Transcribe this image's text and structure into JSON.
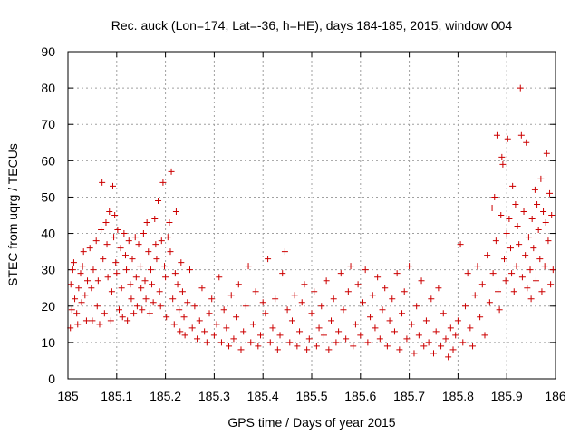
{
  "chart_data": {
    "type": "scatter",
    "title": "Rec. auck (Lon=174, Lat=-36, h=HE), days 184-185, 2015, window 004",
    "xlabel": "GPS time / Days of year 2015",
    "ylabel": "STEC from uqrg / TECUs",
    "xlim": [
      185,
      186
    ],
    "ylim": [
      0,
      90
    ],
    "x_ticks": [
      185,
      185.1,
      185.2,
      185.3,
      185.4,
      185.5,
      185.6,
      185.7,
      185.8,
      185.9,
      186
    ],
    "x_tick_labels": [
      "185",
      "185.1",
      "185.2",
      "185.3",
      "185.4",
      "185.5",
      "185.6",
      "185.7",
      "185.8",
      "185.9",
      "186"
    ],
    "y_ticks": [
      0,
      10,
      20,
      30,
      40,
      50,
      60,
      70,
      80,
      90
    ],
    "y_tick_labels": [
      "0",
      "10",
      "20",
      "30",
      "40",
      "50",
      "60",
      "70",
      "80",
      "90"
    ],
    "grid": true,
    "marker": "+",
    "color": "#cc0000",
    "series": [
      {
        "name": "STEC",
        "points": [
          [
            185.005,
            14
          ],
          [
            185.008,
            19
          ],
          [
            185.006,
            26
          ],
          [
            185.01,
            30
          ],
          [
            185.012,
            32
          ],
          [
            185.014,
            22
          ],
          [
            185.018,
            18
          ],
          [
            185.02,
            15
          ],
          [
            185.022,
            25
          ],
          [
            185.026,
            29
          ],
          [
            185.028,
            21
          ],
          [
            185.03,
            31
          ],
          [
            185.032,
            35
          ],
          [
            185.035,
            23
          ],
          [
            185.038,
            16
          ],
          [
            185.04,
            27
          ],
          [
            185.045,
            36
          ],
          [
            185.048,
            25
          ],
          [
            185.05,
            16
          ],
          [
            185.052,
            30
          ],
          [
            185.058,
            38
          ],
          [
            185.06,
            20
          ],
          [
            185.062,
            27
          ],
          [
            185.065,
            15
          ],
          [
            185.068,
            41
          ],
          [
            185.07,
            54
          ],
          [
            185.072,
            33
          ],
          [
            185.075,
            18
          ],
          [
            185.078,
            43
          ],
          [
            185.08,
            37
          ],
          [
            185.082,
            28
          ],
          [
            185.085,
            46
          ],
          [
            185.088,
            16
          ],
          [
            185.09,
            24
          ],
          [
            185.092,
            53
          ],
          [
            185.094,
            39
          ],
          [
            185.096,
            45
          ],
          [
            185.098,
            32
          ],
          [
            185.1,
            29
          ],
          [
            185.102,
            41
          ],
          [
            185.105,
            19
          ],
          [
            185.108,
            36
          ],
          [
            185.11,
            25
          ],
          [
            185.112,
            17
          ],
          [
            185.115,
            40
          ],
          [
            185.118,
            34
          ],
          [
            185.12,
            30
          ],
          [
            185.122,
            16
          ],
          [
            185.125,
            38
          ],
          [
            185.128,
            26
          ],
          [
            185.13,
            22
          ],
          [
            185.132,
            33
          ],
          [
            185.135,
            18
          ],
          [
            185.138,
            39
          ],
          [
            185.14,
            28
          ],
          [
            185.142,
            20
          ],
          [
            185.145,
            37
          ],
          [
            185.148,
            31
          ],
          [
            185.15,
            25
          ],
          [
            185.152,
            19
          ],
          [
            185.155,
            40
          ],
          [
            185.158,
            27
          ],
          [
            185.16,
            22
          ],
          [
            185.162,
            43
          ],
          [
            185.165,
            35
          ],
          [
            185.168,
            18
          ],
          [
            185.17,
            30
          ],
          [
            185.172,
            26
          ],
          [
            185.175,
            21
          ],
          [
            185.178,
            44
          ],
          [
            185.18,
            37
          ],
          [
            185.182,
            33
          ],
          [
            185.185,
            49
          ],
          [
            185.188,
            24
          ],
          [
            185.19,
            20
          ],
          [
            185.192,
            38
          ],
          [
            185.195,
            54
          ],
          [
            185.198,
            31
          ],
          [
            185.2,
            28
          ],
          [
            185.202,
            17
          ],
          [
            185.205,
            39
          ],
          [
            185.208,
            43
          ],
          [
            185.21,
            35
          ],
          [
            185.212,
            57
          ],
          [
            185.215,
            22
          ],
          [
            185.218,
            15
          ],
          [
            185.22,
            29
          ],
          [
            185.222,
            46
          ],
          [
            185.225,
            26
          ],
          [
            185.228,
            19
          ],
          [
            185.23,
            13
          ],
          [
            185.232,
            32
          ],
          [
            185.235,
            24
          ],
          [
            185.238,
            17
          ],
          [
            185.24,
            12
          ],
          [
            185.245,
            21
          ],
          [
            185.25,
            30
          ],
          [
            185.255,
            14
          ],
          [
            185.26,
            20
          ],
          [
            185.265,
            11
          ],
          [
            185.27,
            16
          ],
          [
            185.275,
            25
          ],
          [
            185.28,
            13
          ],
          [
            185.285,
            10
          ],
          [
            185.29,
            18
          ],
          [
            185.295,
            22
          ],
          [
            185.3,
            12
          ],
          [
            185.305,
            15
          ],
          [
            185.31,
            28
          ],
          [
            185.315,
            10
          ],
          [
            185.32,
            19
          ],
          [
            185.325,
            14
          ],
          [
            185.33,
            9
          ],
          [
            185.335,
            23
          ],
          [
            185.34,
            11
          ],
          [
            185.345,
            17
          ],
          [
            185.35,
            26
          ],
          [
            185.355,
            8
          ],
          [
            185.36,
            13
          ],
          [
            185.365,
            20
          ],
          [
            185.37,
            31
          ],
          [
            185.375,
            10
          ],
          [
            185.38,
            15
          ],
          [
            185.385,
            24
          ],
          [
            185.39,
            9
          ],
          [
            185.395,
            12
          ],
          [
            185.4,
            21
          ],
          [
            185.405,
            18
          ],
          [
            185.41,
            33
          ],
          [
            185.415,
            10
          ],
          [
            185.42,
            14
          ],
          [
            185.425,
            22
          ],
          [
            185.43,
            8
          ],
          [
            185.435,
            12
          ],
          [
            185.44,
            29
          ],
          [
            185.445,
            35
          ],
          [
            185.45,
            19
          ],
          [
            185.455,
            10
          ],
          [
            185.46,
            16
          ],
          [
            185.465,
            23
          ],
          [
            185.47,
            9
          ],
          [
            185.475,
            13
          ],
          [
            185.48,
            21
          ],
          [
            185.485,
            26
          ],
          [
            185.49,
            8
          ],
          [
            185.495,
            11
          ],
          [
            185.5,
            18
          ],
          [
            185.505,
            24
          ],
          [
            185.51,
            9
          ],
          [
            185.515,
            14
          ],
          [
            185.52,
            20
          ],
          [
            185.525,
            12
          ],
          [
            185.53,
            27
          ],
          [
            185.535,
            8
          ],
          [
            185.54,
            16
          ],
          [
            185.545,
            22
          ],
          [
            185.55,
            10
          ],
          [
            185.555,
            13
          ],
          [
            185.56,
            29
          ],
          [
            185.565,
            19
          ],
          [
            185.57,
            11
          ],
          [
            185.575,
            24
          ],
          [
            185.58,
            31
          ],
          [
            185.585,
            9
          ],
          [
            185.59,
            15
          ],
          [
            185.595,
            26
          ],
          [
            185.6,
            12
          ],
          [
            185.605,
            21
          ],
          [
            185.61,
            30
          ],
          [
            185.615,
            10
          ],
          [
            185.62,
            17
          ],
          [
            185.625,
            23
          ],
          [
            185.63,
            14
          ],
          [
            185.635,
            28
          ],
          [
            185.64,
            11
          ],
          [
            185.645,
            19
          ],
          [
            185.65,
            25
          ],
          [
            185.655,
            9
          ],
          [
            185.66,
            16
          ],
          [
            185.665,
            22
          ],
          [
            185.67,
            13
          ],
          [
            185.675,
            29
          ],
          [
            185.68,
            8
          ],
          [
            185.685,
            18
          ],
          [
            185.69,
            24
          ],
          [
            185.695,
            11
          ],
          [
            185.7,
            31
          ],
          [
            185.705,
            15
          ],
          [
            185.71,
            7
          ],
          [
            185.715,
            20
          ],
          [
            185.72,
            12
          ],
          [
            185.725,
            27
          ],
          [
            185.73,
            9
          ],
          [
            185.735,
            16
          ],
          [
            185.74,
            10
          ],
          [
            185.745,
            22
          ],
          [
            185.75,
            7
          ],
          [
            185.755,
            13
          ],
          [
            185.76,
            25
          ],
          [
            185.765,
            9
          ],
          [
            185.77,
            18
          ],
          [
            185.775,
            11
          ],
          [
            185.78,
            6
          ],
          [
            185.785,
            14
          ],
          [
            185.79,
            8
          ],
          [
            185.795,
            12
          ],
          [
            185.8,
            16
          ],
          [
            185.805,
            37
          ],
          [
            185.81,
            10
          ],
          [
            185.815,
            20
          ],
          [
            185.82,
            29
          ],
          [
            185.825,
            14
          ],
          [
            185.83,
            9
          ],
          [
            185.835,
            23
          ],
          [
            185.84,
            31
          ],
          [
            185.845,
            17
          ],
          [
            185.85,
            26
          ],
          [
            185.855,
            12
          ],
          [
            185.86,
            34
          ],
          [
            185.865,
            21
          ],
          [
            185.87,
            47
          ],
          [
            185.872,
            29
          ],
          [
            185.875,
            50
          ],
          [
            185.878,
            38
          ],
          [
            185.88,
            67
          ],
          [
            185.882,
            24
          ],
          [
            185.885,
            19
          ],
          [
            185.888,
            45
          ],
          [
            185.89,
            61
          ],
          [
            185.892,
            59
          ],
          [
            185.895,
            33
          ],
          [
            185.898,
            27
          ],
          [
            185.9,
            40
          ],
          [
            185.902,
            66
          ],
          [
            185.905,
            44
          ],
          [
            185.908,
            36
          ],
          [
            185.91,
            29
          ],
          [
            185.912,
            53
          ],
          [
            185.915,
            24
          ],
          [
            185.918,
            48
          ],
          [
            185.92,
            31
          ],
          [
            185.922,
            42
          ],
          [
            185.925,
            37
          ],
          [
            185.928,
            80
          ],
          [
            185.93,
            67
          ],
          [
            185.932,
            28
          ],
          [
            185.935,
            46
          ],
          [
            185.938,
            34
          ],
          [
            185.94,
            65
          ],
          [
            185.942,
            25
          ],
          [
            185.945,
            39
          ],
          [
            185.948,
            30
          ],
          [
            185.95,
            22
          ],
          [
            185.952,
            44
          ],
          [
            185.955,
            36
          ],
          [
            185.958,
            52
          ],
          [
            185.96,
            27
          ],
          [
            185.962,
            48
          ],
          [
            185.965,
            41
          ],
          [
            185.968,
            33
          ],
          [
            185.97,
            55
          ],
          [
            185.972,
            24
          ],
          [
            185.975,
            46
          ],
          [
            185.978,
            31
          ],
          [
            185.98,
            43
          ],
          [
            185.982,
            62
          ],
          [
            185.985,
            38
          ],
          [
            185.988,
            51
          ],
          [
            185.99,
            26
          ],
          [
            185.992,
            45
          ],
          [
            185.995,
            30
          ]
        ]
      }
    ]
  }
}
